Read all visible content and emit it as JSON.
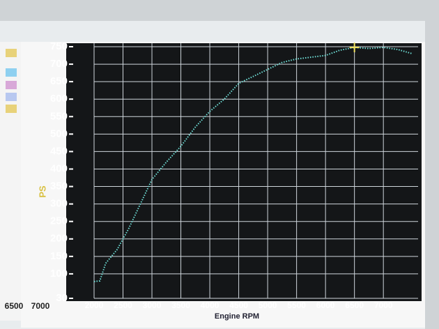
{
  "chart_data": {
    "type": "line",
    "xlabel": "Engine RPM",
    "ylabel": "PS",
    "xlim": [
      2000,
      7600
    ],
    "xticks": [
      2000,
      2500,
      3000,
      3500,
      4000,
      4500,
      5000,
      5500,
      6000,
      6500,
      7000
    ],
    "ylim": [
      30,
      760
    ],
    "yticks": [
      30,
      100,
      150,
      200,
      250,
      300,
      350,
      400,
      450,
      500,
      550,
      600,
      650,
      700,
      750
    ],
    "grid": true,
    "series": [
      {
        "color": "#6fe0d8",
        "x": [
          2000,
          2100,
          2200,
          2400,
          2600,
          2800,
          3000,
          3250,
          3500,
          3750,
          4000,
          4250,
          4500,
          4750,
          5000,
          5250,
          5500,
          5750,
          6000,
          6250,
          6500,
          6750,
          7000,
          7250,
          7500
        ],
        "values": [
          78,
          80,
          130,
          170,
          230,
          300,
          370,
          420,
          465,
          520,
          565,
          600,
          645,
          665,
          685,
          705,
          715,
          720,
          725,
          740,
          748,
          745,
          748,
          742,
          730
        ]
      }
    ],
    "marker": {
      "x": 6500,
      "y": 748,
      "color": "#f0e060"
    }
  },
  "side_panel": {
    "xtick_labels": [
      "6500",
      "7000"
    ]
  }
}
